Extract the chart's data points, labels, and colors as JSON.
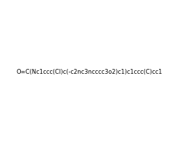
{
  "smiles": "O=C(Nc1ccc(Cl)c(-c2nc3ncccc3o2)c1)c1ccc(C)cc1",
  "title": "",
  "background_color": "#ffffff",
  "figsize": [
    2.52,
    2.04
  ],
  "dpi": 100
}
